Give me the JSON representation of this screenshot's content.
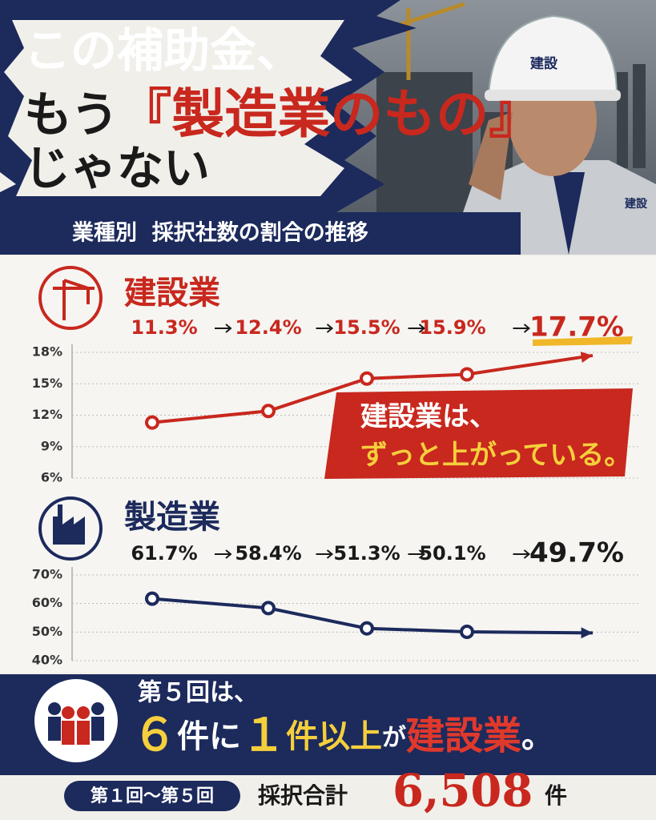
{
  "headline": {
    "line1": "この補助金、",
    "line2": [
      "もう",
      "『製造業のもの』"
    ],
    "line3": "じゃない"
  },
  "photo_labels": {
    "helmet": "建設",
    "jacket": "建設"
  },
  "section_title": "業種別  採択社数の割合の推移",
  "chart_data": [
    {
      "type": "line",
      "title": "建設業",
      "values": [
        11.3,
        12.4,
        15.5,
        15.9,
        17.7
      ],
      "value_labels": [
        "11.3%",
        "12.4%",
        "15.5%",
        "15.9%",
        "17.7%"
      ],
      "color": "#c8281e",
      "ylim": [
        6,
        18
      ],
      "yticks": [
        {
          "value": 6,
          "label": "6%"
        },
        {
          "value": 9,
          "label": "9%"
        },
        {
          "value": 12,
          "label": "12%"
        },
        {
          "value": 15,
          "label": "15%"
        },
        {
          "value": 18,
          "label": "18%"
        }
      ],
      "grid": true
    },
    {
      "type": "line",
      "title": "製造業",
      "values": [
        61.7,
        58.4,
        51.3,
        50.1,
        49.7
      ],
      "value_labels": [
        "61.7%",
        "58.4%",
        "51.3%",
        "50.1%",
        "49.7%"
      ],
      "color": "#1c2a5c",
      "ylim": [
        40,
        70
      ],
      "yticks": [
        {
          "value": 40,
          "label": "40%"
        },
        {
          "value": 50,
          "label": "50%"
        },
        {
          "value": 60,
          "label": "60%"
        },
        {
          "value": 70,
          "label": "70%"
        }
      ],
      "grid": true
    }
  ],
  "callout": [
    "建設業は、",
    "ずっと上がっている。"
  ],
  "banner": {
    "line1": "第５回は、",
    "line2": [
      "６",
      "件に",
      "１",
      "件以上",
      "が",
      "建設業",
      "。"
    ]
  },
  "footer": {
    "period": "第１回～第５回",
    "label": "採択合計",
    "total": "6,508",
    "unit": "件"
  }
}
